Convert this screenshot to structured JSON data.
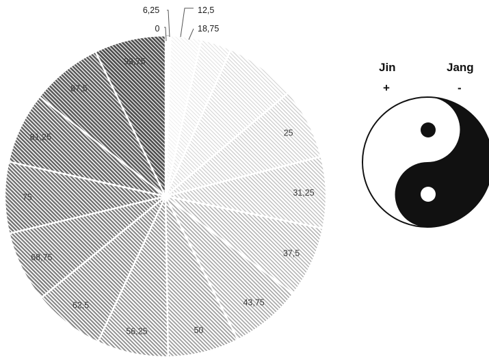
{
  "chart_data": {
    "type": "pie",
    "categories": [
      "0",
      "6,25",
      "12,5",
      "18,75",
      "25",
      "31,25",
      "37,5",
      "43,75",
      "50",
      "56,25",
      "62,5",
      "68,75",
      "75",
      "81,25",
      "87,5",
      "93,75"
    ],
    "values": [
      0.5,
      3,
      3,
      7,
      7,
      7,
      7,
      7,
      7,
      7,
      7,
      7,
      7,
      7,
      7,
      7
    ],
    "shade_percent": [
      0,
      6.25,
      12.5,
      18.75,
      25,
      31.25,
      37.5,
      43.75,
      50,
      56.25,
      62.5,
      68.75,
      75,
      81.25,
      87.5,
      93.75
    ],
    "start": "top",
    "direction": "clockwise",
    "fill_pattern": "diagonal-hatch",
    "grid": false,
    "legend": "none"
  },
  "yinyang": {
    "left_label": "Jin",
    "left_sign": "+",
    "right_label": "Jang",
    "right_sign": "-",
    "dark_color": "#111111",
    "light_color": "#ffffff"
  },
  "colors": {
    "slice_border": "#ffffff",
    "hatch_light": "#f2f2f2",
    "hatch_dark": "#454545"
  }
}
